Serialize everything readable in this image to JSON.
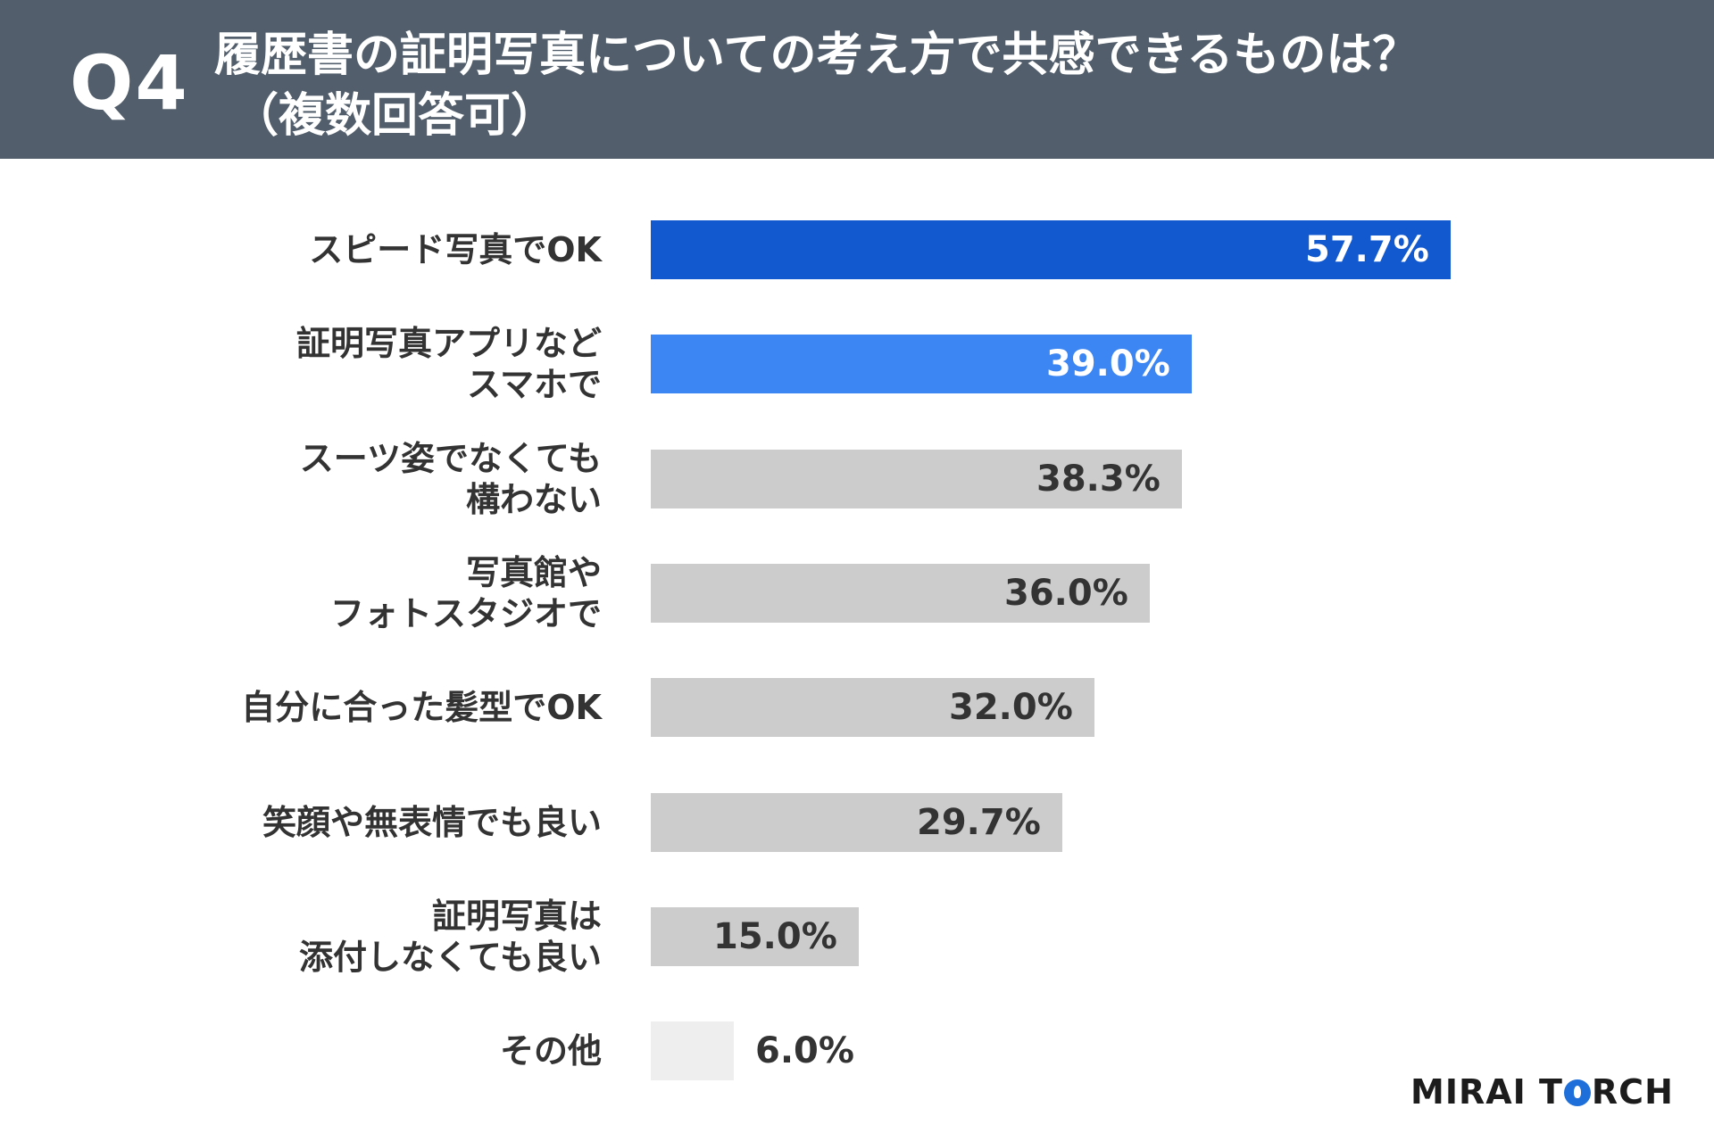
{
  "header": {
    "q_label": "Q4",
    "title": "履歴書の証明写真についての考え方で共感できるものは？",
    "subtitle": "（複数回答可）"
  },
  "chart_data": {
    "type": "bar",
    "orientation": "horizontal",
    "unit": "%",
    "xlim": [
      0,
      100
    ],
    "categories": [
      "スピード写真でOK",
      "証明写真アプリなど\nスマホで",
      "スーツ姿でなくても\n構わない",
      "写真館や\nフォトスタジオで",
      "自分に合った髪型でOK",
      "笑顔や無表情でも良い",
      "証明写真は\n添付しなくても良い",
      "その他"
    ],
    "values": [
      57.7,
      39.0,
      38.3,
      36.0,
      32.0,
      29.7,
      15.0,
      6.0
    ],
    "value_labels": [
      "57.7%",
      "39.0%",
      "38.3%",
      "36.0%",
      "32.0%",
      "29.7%",
      "15.0%",
      "6.0%"
    ],
    "bar_colors": [
      "#1259cf",
      "#3c86f4",
      "#cccccc",
      "#cccccc",
      "#cccccc",
      "#cccccc",
      "#cccccc",
      "#eeeeee"
    ],
    "label_colors": [
      "#ffffff",
      "#ffffff",
      "#333333",
      "#333333",
      "#333333",
      "#333333",
      "#333333",
      "#333333"
    ],
    "grid": false,
    "legend": "none"
  },
  "logo": {
    "part1": "MIRAI T",
    "part2": "RCH"
  }
}
